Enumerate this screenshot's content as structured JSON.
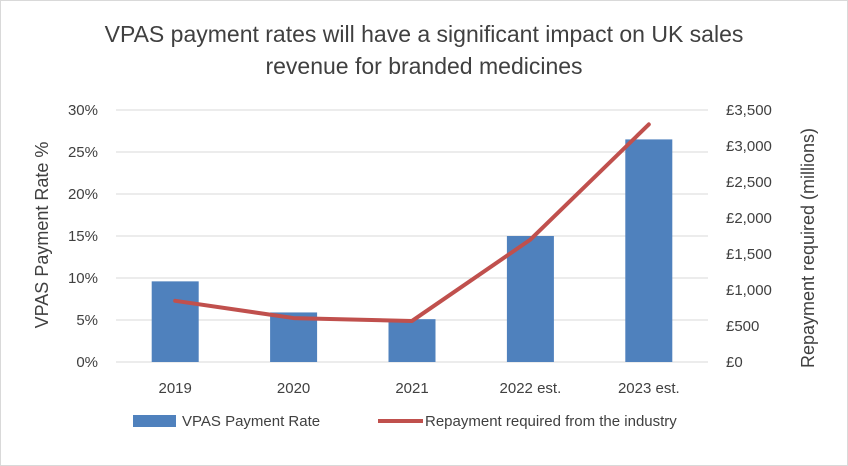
{
  "chart_data": {
    "type": "bar",
    "title": "VPAS payment rates will have a significant impact on UK sales revenue for branded medicines",
    "categories": [
      "2019",
      "2020",
      "2021",
      "2022 est.",
      "2023 est."
    ],
    "series": [
      {
        "name": "VPAS Payment Rate",
        "type": "bar",
        "axis": "left",
        "values": [
          9.6,
          5.9,
          5.1,
          15.0,
          26.5
        ],
        "color": "#4f81bd"
      },
      {
        "name": "Repayment required from the industry",
        "type": "line",
        "axis": "right",
        "values": [
          850,
          610,
          570,
          1700,
          3300
        ],
        "color": "#c0504d"
      }
    ],
    "y_left": {
      "label": "VPAS Payment Rate %",
      "min": 0,
      "max": 30,
      "step": 5,
      "tick_labels": [
        "0%",
        "5%",
        "10%",
        "15%",
        "20%",
        "25%",
        "30%"
      ]
    },
    "y_right": {
      "label": "Repayment required (millions)",
      "min": 0,
      "max": 3500,
      "step": 500,
      "tick_labels": [
        "£0",
        "£500",
        "£1,000",
        "£1,500",
        "£2,000",
        "£2,500",
        "£3,000",
        "£3,500"
      ]
    },
    "grid": true,
    "gridline_color": "#d9d9d9",
    "legend_position": "bottom"
  }
}
